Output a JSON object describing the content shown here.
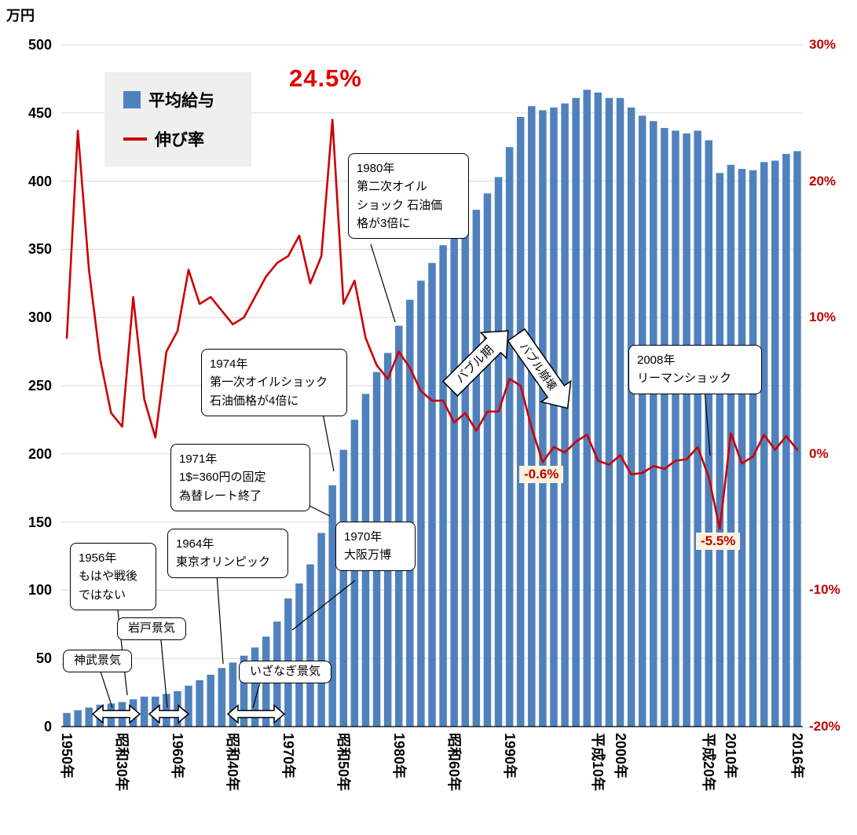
{
  "colors": {
    "bar": "#4f81bd",
    "line": "#cc0000",
    "red_text": "#c00000",
    "big_label_red": "#e60000",
    "grid": "#d9d9d9",
    "legend_bg": "#efefef",
    "era_label_bg": "#fcf2dc",
    "callout_bg": "#ffffff"
  },
  "axis_left": {
    "unit": "万円",
    "ticks": [
      500,
      450,
      400,
      350,
      300,
      250,
      200,
      150,
      100,
      50,
      0
    ]
  },
  "axis_right": {
    "ticks": [
      {
        "text": "30%",
        "value": 30
      },
      {
        "text": "20%",
        "value": 20
      },
      {
        "text": "10%",
        "value": 10
      },
      {
        "text": "0%",
        "value": 0
      },
      {
        "text": "-10%",
        "value": -10
      },
      {
        "text": "-20%",
        "value": -20
      }
    ]
  },
  "x_axis": {
    "labels": [
      {
        "text": "1950年",
        "year": 1950
      },
      {
        "text": "昭和30年",
        "year": 1955
      },
      {
        "text": "1960年",
        "year": 1960
      },
      {
        "text": "昭和40年",
        "year": 1965
      },
      {
        "text": "1970年",
        "year": 1970
      },
      {
        "text": "昭和50年",
        "year": 1975
      },
      {
        "text": "1980年",
        "year": 1980
      },
      {
        "text": "昭和60年",
        "year": 1985
      },
      {
        "text": "1990年",
        "year": 1990
      },
      {
        "text": "平成10年",
        "year": 1998
      },
      {
        "text": "2000年",
        "year": 2000
      },
      {
        "text": "平成20年",
        "year": 2008
      },
      {
        "text": "2010年",
        "year": 2010
      },
      {
        "text": "2016年",
        "year": 2016
      }
    ]
  },
  "legend": {
    "bar_label": "平均給与",
    "line_label": "伸び率"
  },
  "chart_data": {
    "type": "combo bar+line",
    "grid": true,
    "legend_position": "top-left",
    "left_axis": {
      "label": "万円",
      "min": 0,
      "max": 500,
      "step": 50
    },
    "right_axis": {
      "label": "%",
      "min": -20,
      "max": 30,
      "labeled_step": 10
    },
    "x_years": [
      1950,
      1951,
      1952,
      1953,
      1954,
      1955,
      1956,
      1957,
      1958,
      1959,
      1960,
      1961,
      1962,
      1963,
      1964,
      1965,
      1966,
      1967,
      1968,
      1969,
      1970,
      1971,
      1972,
      1973,
      1974,
      1975,
      1976,
      1977,
      1978,
      1979,
      1980,
      1981,
      1982,
      1983,
      1984,
      1985,
      1986,
      1987,
      1988,
      1989,
      1990,
      1991,
      1992,
      1993,
      1994,
      1995,
      1996,
      1997,
      1998,
      1999,
      2000,
      2001,
      2002,
      2003,
      2004,
      2005,
      2006,
      2007,
      2008,
      2009,
      2010,
      2011,
      2012,
      2013,
      2014,
      2015,
      2016
    ],
    "series": [
      {
        "name": "平均給与",
        "type": "bar",
        "axis": "left",
        "unit": "万円",
        "color": "#4f81bd",
        "values": [
          10,
          12,
          14,
          16,
          17,
          18,
          20,
          22,
          22,
          24,
          26,
          30,
          34,
          38,
          43,
          47,
          52,
          58,
          66,
          77,
          94,
          105,
          119,
          142,
          177,
          203,
          225,
          244,
          260,
          274,
          294,
          313,
          327,
          340,
          353,
          362,
          373,
          379,
          391,
          403,
          425,
          447,
          455,
          452,
          454,
          457,
          461,
          467,
          465,
          461,
          461,
          454,
          448,
          444,
          439,
          437,
          435,
          437,
          430,
          406,
          412,
          409,
          408,
          414,
          415,
          420,
          422
        ]
      },
      {
        "name": "伸び率",
        "type": "line",
        "axis": "right",
        "unit": "%",
        "color": "#cc0000",
        "values": [
          8.5,
          23.7,
          13.5,
          7.0,
          3.0,
          2.0,
          11.5,
          4.0,
          1.2,
          7.5,
          9.0,
          13.5,
          11.0,
          11.5,
          10.5,
          9.5,
          10.0,
          11.5,
          13.0,
          14.0,
          14.5,
          16.0,
          12.5,
          14.5,
          24.5,
          11.0,
          12.7,
          8.5,
          6.5,
          5.5,
          7.5,
          6.3,
          4.6,
          3.9,
          3.9,
          2.3,
          3.0,
          1.7,
          3.1,
          3.1,
          5.5,
          5.0,
          1.9,
          -0.6,
          0.5,
          0.1,
          0.9,
          1.4,
          -0.5,
          -0.8,
          -0.1,
          -1.5,
          -1.4,
          -0.9,
          -1.1,
          -0.5,
          -0.4,
          0.5,
          -1.7,
          -5.5,
          1.5,
          -0.7,
          -0.2,
          1.4,
          0.3,
          1.3,
          0.3
        ]
      }
    ]
  },
  "annotations": {
    "peak_growth_label": "24.5%",
    "callout_1980": {
      "text": "1980年\n第二次オイル\nショック 石油価\n格が3倍に"
    },
    "callout_1974": {
      "text": "1974年\n第一次オイルショック\n石油価格が4倍に"
    },
    "callout_1971": {
      "text": "1971年\n1$=360円の固定\n為替レート終了"
    },
    "callout_1964": {
      "text": "1964年\n東京オリンピック"
    },
    "callout_1956": {
      "text": "1956年\nもはや戦後\nではない"
    },
    "callout_1970": {
      "text": "1970年\n大阪万博"
    },
    "callout_2008": {
      "text": "2008年\nリーマンショック"
    },
    "era_jimmu": "神武景気",
    "era_iwato": "岩戸景気",
    "era_izanagi": "いざなぎ景気",
    "bubble_period": "バブル期",
    "bubble_collapse": "バブル崩壊",
    "label_neg06": "-0.6%",
    "label_neg55": "-5.5%"
  }
}
